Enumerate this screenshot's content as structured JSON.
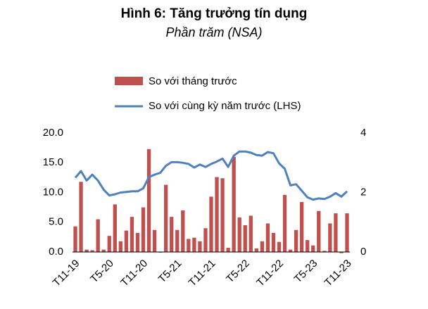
{
  "chart_data": {
    "type": "bar_line",
    "title": "Hình 6: Tăng trưởng tín dụng",
    "subtitle": "Phần trăm (NSA)",
    "categories": [
      "T11-19",
      null,
      null,
      null,
      null,
      null,
      "T5-20",
      null,
      null,
      null,
      null,
      null,
      "T11-20",
      null,
      null,
      null,
      null,
      null,
      "T5-21",
      null,
      null,
      null,
      null,
      null,
      "T11-21",
      null,
      null,
      null,
      null,
      null,
      "T5-22",
      null,
      null,
      null,
      null,
      null,
      "T11-22",
      null,
      null,
      null,
      null,
      null,
      "T5-23",
      null,
      null,
      null,
      null,
      null,
      "T11-23"
    ],
    "series": [
      {
        "name": "So với tháng trước",
        "type": "bar",
        "axis": "y2",
        "color": "#c0504d",
        "values": [
          0.86,
          2.36,
          0.08,
          0.06,
          1.1,
          0.08,
          0.54,
          1.6,
          0.36,
          0.72,
          1.18,
          0.64,
          1.5,
          3.46,
          0.74,
          -0.02,
          2.26,
          1.18,
          0.74,
          1.4,
          0.44,
          0.48,
          0.36,
          0.8,
          1.86,
          2.52,
          2.48,
          0.14,
          3.2,
          1.16,
          0.9,
          1.22,
          0.12,
          0.36,
          0.96,
          0.64,
          0.34,
          1.92,
          0.08,
          0.74,
          1.68,
          0.4,
          0.22,
          1.38,
          0.04,
          0.96,
          1.3,
          -0.04,
          1.3
        ]
      },
      {
        "name": "So với cùng kỳ năm trước (LHS)",
        "type": "line",
        "color": "#4f81bd",
        "values": [
          12.5,
          13.6,
          12.0,
          13.0,
          12.0,
          10.5,
          9.5,
          9.7,
          10.0,
          10.1,
          10.2,
          10.2,
          10.7,
          12.6,
          13.0,
          13.3,
          14.5,
          15.1,
          15.1,
          15.0,
          14.8,
          14.2,
          14.7,
          14.3,
          14.8,
          15.2,
          15.7,
          14.3,
          16.2,
          16.9,
          16.9,
          16.7,
          16.3,
          16.2,
          16.8,
          16.6,
          14.9,
          14.0,
          11.2,
          11.4,
          10.3,
          9.2,
          8.8,
          9.0,
          8.9,
          9.3,
          9.9,
          9.3,
          10.2
        ]
      }
    ],
    "ylim": [
      0,
      20
    ],
    "yticks": [
      {
        "value": 0,
        "label": "0.0"
      },
      {
        "value": 5,
        "label": "5.0"
      },
      {
        "value": 10,
        "label": "10.0"
      },
      {
        "value": 15,
        "label": "15.0"
      },
      {
        "value": 20,
        "label": "20.0"
      }
    ],
    "y2lim": [
      0,
      4
    ],
    "y2ticks": [
      0,
      2,
      4
    ],
    "legend": "top-left"
  }
}
